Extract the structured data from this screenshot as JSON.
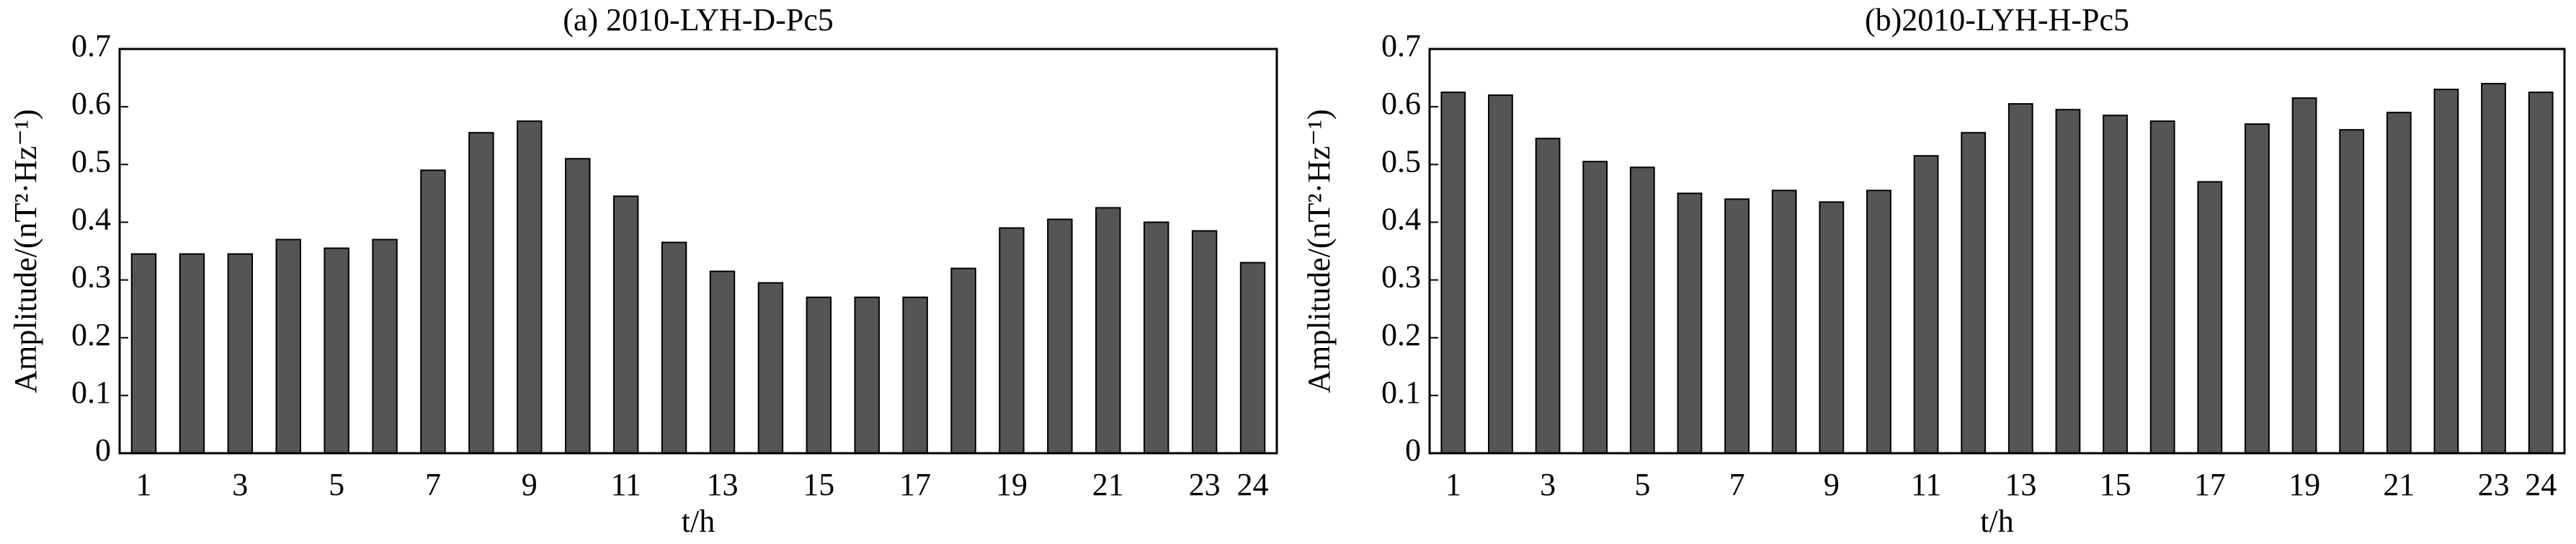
{
  "chart_data": [
    {
      "type": "bar",
      "title": "(a) 2010-LYH-D-Pc5",
      "x_label": "t/h",
      "y_label": "Amplitude/(nT²·Hz⁻¹)",
      "categories": [
        "1",
        null,
        "3",
        null,
        "5",
        null,
        "7",
        null,
        "9",
        null,
        "11",
        null,
        "13",
        null,
        "15",
        null,
        "17",
        null,
        "19",
        null,
        "21",
        null,
        "23",
        "24"
      ],
      "values": [
        0.345,
        0.345,
        0.345,
        0.37,
        0.355,
        0.37,
        0.49,
        0.555,
        0.575,
        0.51,
        0.445,
        0.365,
        0.315,
        0.295,
        0.27,
        0.27,
        0.27,
        0.32,
        0.39,
        0.405,
        0.425,
        0.4,
        0.385,
        0.33
      ],
      "color": "#555555",
      "ylim": [
        0,
        0.7
      ],
      "yticks": [
        0,
        0.1,
        0.2,
        0.3,
        0.4,
        0.5,
        0.6,
        0.7
      ]
    },
    {
      "type": "bar",
      "title": "(b)2010-LYH-H-Pc5",
      "x_label": "t/h",
      "y_label": "Amplitude/(nT²·Hz⁻¹)",
      "categories": [
        "1",
        null,
        "3",
        null,
        "5",
        null,
        "7",
        null,
        "9",
        null,
        "11",
        null,
        "13",
        null,
        "15",
        null,
        "17",
        null,
        "19",
        null,
        "21",
        null,
        "23",
        "24"
      ],
      "values": [
        0.625,
        0.62,
        0.545,
        0.505,
        0.495,
        0.45,
        0.44,
        0.455,
        0.435,
        0.455,
        0.515,
        0.555,
        0.605,
        0.595,
        0.585,
        0.575,
        0.47,
        0.57,
        0.615,
        0.56,
        0.59,
        0.63,
        0.64,
        0.625
      ],
      "color": "#555555",
      "ylim": [
        0,
        0.7
      ],
      "yticks": [
        0,
        0.1,
        0.2,
        0.3,
        0.4,
        0.5,
        0.6,
        0.7
      ]
    }
  ]
}
